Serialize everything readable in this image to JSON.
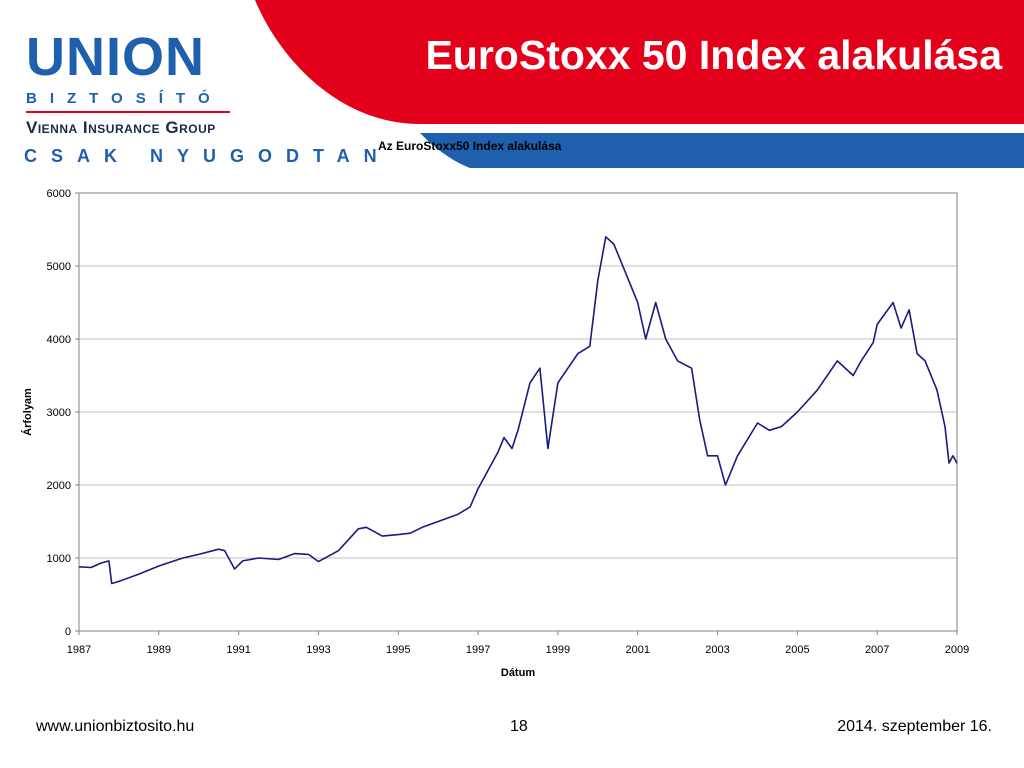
{
  "slide_title": "EuroStoxx 50 Index alakulása",
  "logo": {
    "name": "UNION",
    "subtitle": "BIZTOSÍTÓ",
    "group": "Vienna Insurance Group"
  },
  "tagline": "CSAK NYUGODTAN",
  "chart_data": {
    "type": "line",
    "title": "Az EuroStoxx50 Index alakulása",
    "xlabel": "Dátum",
    "ylabel": "Árfolyam",
    "xlim": [
      1987,
      2009
    ],
    "ylim": [
      0,
      6000
    ],
    "x_ticks": [
      "1987",
      "1989",
      "1991",
      "1993",
      "1995",
      "1997",
      "1999",
      "2001",
      "2003",
      "2005",
      "2007",
      "2009"
    ],
    "y_ticks": [
      "0",
      "1000",
      "2000",
      "3000",
      "4000",
      "5000",
      "6000"
    ],
    "grid": "horizontal",
    "legend": "none",
    "series": [
      {
        "color": "#1a1a80",
        "x": [
          1987.0,
          1987.3,
          1987.55,
          1987.75,
          1987.82,
          1988.0,
          1988.5,
          1989.0,
          1989.6,
          1990.0,
          1990.5,
          1990.65,
          1990.9,
          1991.1,
          1991.5,
          1992.0,
          1992.4,
          1992.75,
          1993.0,
          1993.5,
          1994.0,
          1994.2,
          1994.6,
          1995.0,
          1995.3,
          1995.6,
          1996.0,
          1996.5,
          1996.8,
          1997.0,
          1997.5,
          1997.65,
          1997.85,
          1998.0,
          1998.3,
          1998.55,
          1998.75,
          1999.0,
          1999.5,
          1999.8,
          2000.0,
          2000.2,
          2000.4,
          2000.7,
          2001.0,
          2001.2,
          2001.45,
          2001.7,
          2002.0,
          2002.35,
          2002.55,
          2002.75,
          2003.0,
          2003.2,
          2003.5,
          2004.0,
          2004.3,
          2004.6,
          2005.0,
          2005.5,
          2006.0,
          2006.4,
          2006.6,
          2006.9,
          2007.0,
          2007.4,
          2007.6,
          2007.8,
          2008.0,
          2008.2,
          2008.5,
          2008.7,
          2008.8,
          2008.9,
          2009.0
        ],
        "values": [
          880,
          870,
          930,
          960,
          650,
          680,
          780,
          890,
          1000,
          1050,
          1120,
          1100,
          850,
          960,
          1000,
          980,
          1060,
          1050,
          950,
          1100,
          1400,
          1420,
          1300,
          1320,
          1340,
          1420,
          1500,
          1600,
          1700,
          1950,
          2450,
          2650,
          2500,
          2750,
          3400,
          3600,
          2500,
          3400,
          3800,
          3900,
          4800,
          5400,
          5300,
          4900,
          4500,
          4000,
          4500,
          4000,
          3700,
          3600,
          2900,
          2400,
          2400,
          2000,
          2400,
          2850,
          2750,
          2800,
          3000,
          3300,
          3700,
          3500,
          3700,
          3950,
          4200,
          4500,
          4150,
          4400,
          3800,
          3700,
          3300,
          2800,
          2300,
          2400,
          2300
        ]
      }
    ]
  },
  "footer": {
    "url": "www.unionbiztosito.hu",
    "page": "18",
    "date": "2014. szeptember 16."
  }
}
